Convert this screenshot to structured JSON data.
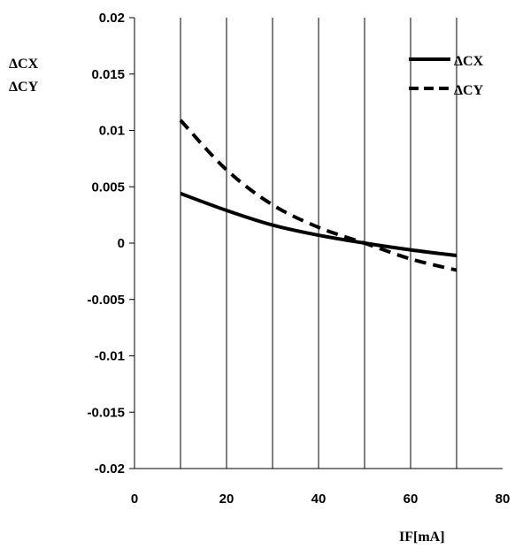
{
  "chart_data": {
    "type": "line",
    "xlabel": "IF[mA]",
    "ylabel_lines": [
      "ΔCX",
      "ΔCY"
    ],
    "xlim": [
      0,
      80
    ],
    "ylim": [
      -0.02,
      0.02
    ],
    "xticks": [
      0,
      20,
      40,
      60,
      80
    ],
    "yticks": [
      0.02,
      0.015,
      0.01,
      0.005,
      0,
      -0.005,
      -0.01,
      -0.015,
      -0.02
    ],
    "ytick_labels": [
      "0.02",
      "0.015",
      "0.01",
      "0.005",
      "0",
      "-0.005",
      "-0.01",
      "-0.015",
      "-0.02"
    ],
    "xtick_labels": [
      "0",
      "20",
      "40",
      "60",
      "80"
    ],
    "grid": "vertical lines every 10",
    "legend_position": "top-right",
    "series": [
      {
        "name": "ΔCX",
        "style": "solid",
        "color": "#000000",
        "x": [
          10,
          20,
          30,
          40,
          50,
          60,
          70
        ],
        "y": [
          0.0044,
          0.0029,
          0.0016,
          0.0007,
          0.0,
          -0.0006,
          -0.0011
        ]
      },
      {
        "name": "ΔCY",
        "style": "dashed",
        "color": "#000000",
        "x": [
          10,
          20,
          30,
          40,
          50,
          60,
          70
        ],
        "y": [
          0.0109,
          0.0065,
          0.0034,
          0.0014,
          0.0,
          -0.0014,
          -0.0024
        ]
      }
    ]
  }
}
